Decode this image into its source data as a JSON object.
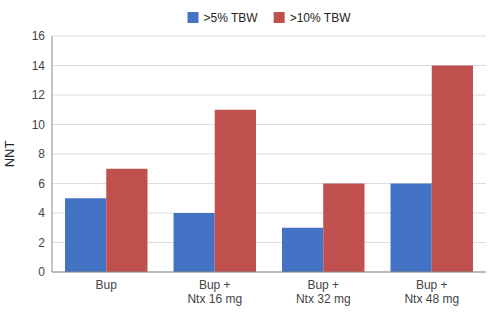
{
  "chart_data": {
    "type": "bar",
    "categories": [
      "Bup",
      "Bup +\nNtx 16 mg",
      "Bup +\nNtx 32 mg",
      "Bup +\nNtx 48 mg"
    ],
    "series": [
      {
        "name": ">5% TBW",
        "color": "#4472C4",
        "values": [
          5,
          4,
          3,
          6
        ]
      },
      {
        "name": ">10% TBW",
        "color": "#C0504D",
        "values": [
          7,
          11,
          6,
          14
        ]
      }
    ],
    "ylabel": "NNT",
    "ylim": [
      0,
      16
    ],
    "yticks": [
      0,
      2,
      4,
      6,
      8,
      10,
      12,
      14,
      16
    ],
    "grid": true,
    "legend": "upper center"
  }
}
